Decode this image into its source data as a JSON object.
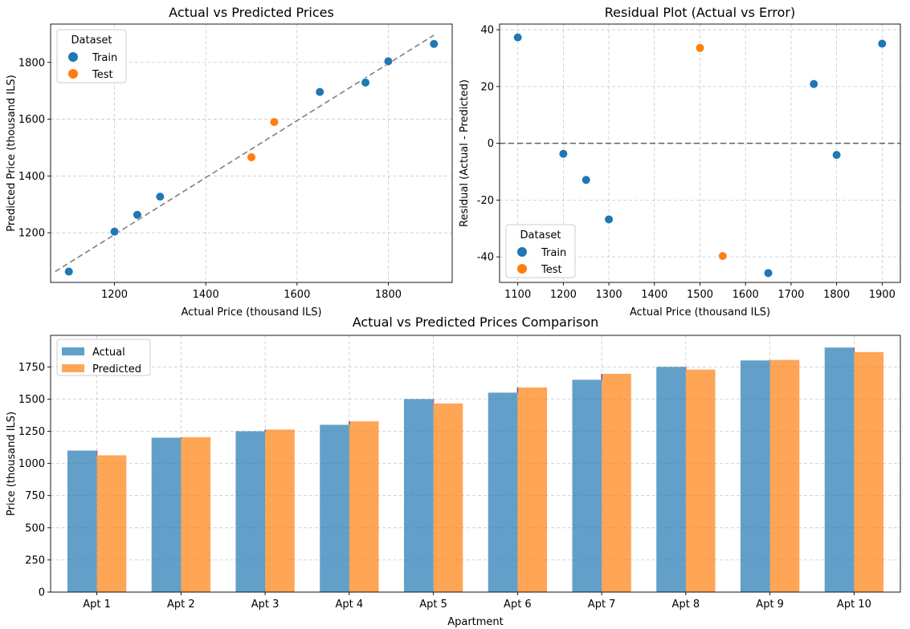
{
  "chart_data": [
    {
      "type": "scatter",
      "title": "Actual vs Predicted Prices",
      "xlabel": "Actual Price (thousand ILS)",
      "ylabel": "Predicted Price (thousand ILS)",
      "xlim": [
        1060,
        1940
      ],
      "ylim": [
        1025,
        1935
      ],
      "xticks": [
        1200,
        1400,
        1600,
        1800
      ],
      "yticks": [
        1200,
        1400,
        1600,
        1800
      ],
      "grid": true,
      "legend": {
        "title": "Dataset",
        "position": "top-left"
      },
      "reference_line": {
        "style": "dashed",
        "color": "#808080",
        "from": [
          1070,
          1063
        ],
        "to": [
          1900,
          1896
        ]
      },
      "series": [
        {
          "name": "Train",
          "color": "#1f77b4",
          "points": [
            [
              1100,
              1063
            ],
            [
              1200,
              1204
            ],
            [
              1250,
              1263
            ],
            [
              1300,
              1327
            ],
            [
              1650,
              1696
            ],
            [
              1750,
              1729
            ],
            [
              1800,
              1804
            ],
            [
              1900,
              1865
            ]
          ]
        },
        {
          "name": "Test",
          "color": "#ff7f0e",
          "points": [
            [
              1500,
              1466
            ],
            [
              1550,
              1590
            ]
          ]
        }
      ]
    },
    {
      "type": "scatter",
      "title": "Residual Plot (Actual vs Error)",
      "xlabel": "Actual Price (thousand ILS)",
      "ylabel": "Residual (Actual - Predicted)",
      "xlim": [
        1060,
        1940
      ],
      "ylim": [
        -49,
        42
      ],
      "xticks": [
        1100,
        1200,
        1300,
        1400,
        1500,
        1600,
        1700,
        1800,
        1900
      ],
      "yticks": [
        -40,
        -20,
        0,
        20,
        40
      ],
      "grid": true,
      "legend": {
        "title": "Dataset",
        "position": "bottom-left"
      },
      "reference_line": {
        "style": "dashed",
        "color": "#606060",
        "y": 0
      },
      "series": [
        {
          "name": "Train",
          "color": "#1f77b4",
          "points": [
            [
              1100,
              37.3
            ],
            [
              1200,
              -3.7
            ],
            [
              1250,
              -12.9
            ],
            [
              1300,
              -26.8
            ],
            [
              1650,
              -45.7
            ],
            [
              1750,
              20.9
            ],
            [
              1800,
              -4.1
            ],
            [
              1900,
              35.1
            ]
          ]
        },
        {
          "name": "Test",
          "color": "#ff7f0e",
          "points": [
            [
              1500,
              33.6
            ],
            [
              1550,
              -39.7
            ]
          ]
        }
      ]
    },
    {
      "type": "bar",
      "title": "Actual vs Predicted Prices Comparison",
      "xlabel": "Apartment",
      "ylabel": "Price (thousand ILS)",
      "ylim": [
        0,
        1995
      ],
      "yticks": [
        0,
        250,
        500,
        750,
        1000,
        1250,
        1500,
        1750
      ],
      "grid": true,
      "legend": {
        "position": "top-left"
      },
      "categories": [
        "Apt 1",
        "Apt 2",
        "Apt 3",
        "Apt 4",
        "Apt 5",
        "Apt 6",
        "Apt 7",
        "Apt 8",
        "Apt 9",
        "Apt 10"
      ],
      "series": [
        {
          "name": "Actual",
          "color": "#1f77b4",
          "values": [
            1100,
            1200,
            1250,
            1300,
            1500,
            1550,
            1650,
            1750,
            1800,
            1900
          ]
        },
        {
          "name": "Predicted",
          "color": "#ff7f0e",
          "values": [
            1063,
            1204,
            1263,
            1327,
            1466,
            1590,
            1696,
            1729,
            1804,
            1865
          ]
        }
      ],
      "difference_marker_colors": {
        "over": "#3b3bd6",
        "under": "#e0407a"
      }
    }
  ]
}
